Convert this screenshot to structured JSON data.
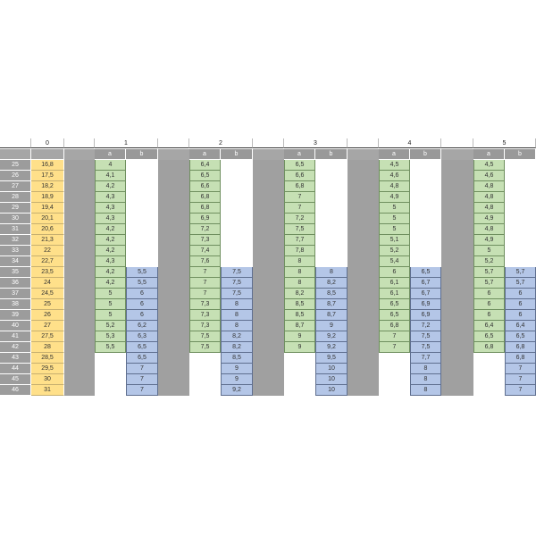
{
  "columns": {
    "c0": "0",
    "groups": [
      "1",
      "2",
      "3",
      "4",
      "5"
    ],
    "sub_a": "a",
    "sub_b": "b"
  },
  "rows": [
    {
      "n": "25",
      "c0": "16,8",
      "v": [
        [
          "4",
          ""
        ],
        [
          "6,4",
          ""
        ],
        [
          "6,5",
          ""
        ],
        [
          "4,5",
          ""
        ],
        [
          "4,5",
          ""
        ]
      ]
    },
    {
      "n": "26",
      "c0": "17,5",
      "v": [
        [
          "4,1",
          ""
        ],
        [
          "6,5",
          ""
        ],
        [
          "6,6",
          ""
        ],
        [
          "4,6",
          ""
        ],
        [
          "4,6",
          ""
        ]
      ]
    },
    {
      "n": "27",
      "c0": "18,2",
      "v": [
        [
          "4,2",
          ""
        ],
        [
          "6,6",
          ""
        ],
        [
          "6,8",
          ""
        ],
        [
          "4,8",
          ""
        ],
        [
          "4,8",
          ""
        ]
      ]
    },
    {
      "n": "28",
      "c0": "18,9",
      "v": [
        [
          "4,3",
          ""
        ],
        [
          "6,8",
          ""
        ],
        [
          "7",
          ""
        ],
        [
          "4,9",
          ""
        ],
        [
          "4,8",
          ""
        ]
      ]
    },
    {
      "n": "29",
      "c0": "19,4",
      "v": [
        [
          "4,3",
          ""
        ],
        [
          "6,8",
          ""
        ],
        [
          "7",
          ""
        ],
        [
          "5",
          ""
        ],
        [
          "4,8",
          ""
        ]
      ]
    },
    {
      "n": "30",
      "c0": "20,1",
      "v": [
        [
          "4,3",
          ""
        ],
        [
          "6,9",
          ""
        ],
        [
          "7,2",
          ""
        ],
        [
          "5",
          ""
        ],
        [
          "4,9",
          ""
        ]
      ]
    },
    {
      "n": "31",
      "c0": "20,6",
      "v": [
        [
          "4,2",
          ""
        ],
        [
          "7,2",
          ""
        ],
        [
          "7,5",
          ""
        ],
        [
          "5",
          ""
        ],
        [
          "4,8",
          ""
        ]
      ]
    },
    {
      "n": "32",
      "c0": "21,3",
      "v": [
        [
          "4,2",
          ""
        ],
        [
          "7,3",
          ""
        ],
        [
          "7,7",
          ""
        ],
        [
          "5,1",
          ""
        ],
        [
          "4,9",
          ""
        ]
      ]
    },
    {
      "n": "33",
      "c0": "22",
      "v": [
        [
          "4,2",
          ""
        ],
        [
          "7,4",
          ""
        ],
        [
          "7,8",
          ""
        ],
        [
          "5,2",
          ""
        ],
        [
          "5",
          ""
        ]
      ]
    },
    {
      "n": "34",
      "c0": "22,7",
      "v": [
        [
          "4,3",
          ""
        ],
        [
          "7,6",
          ""
        ],
        [
          "8",
          ""
        ],
        [
          "5,4",
          ""
        ],
        [
          "5,2",
          ""
        ]
      ]
    },
    {
      "n": "35",
      "c0": "23,5",
      "v": [
        [
          "4,2",
          "5,5"
        ],
        [
          "7",
          "7,5"
        ],
        [
          "8",
          "8"
        ],
        [
          "6",
          "6,5"
        ],
        [
          "5,7",
          "5,7"
        ]
      ]
    },
    {
      "n": "36",
      "c0": "24",
      "v": [
        [
          "4,2",
          "5,5"
        ],
        [
          "7",
          "7,5"
        ],
        [
          "8",
          "8,2"
        ],
        [
          "6,1",
          "6,7"
        ],
        [
          "5,7",
          "5,7"
        ]
      ]
    },
    {
      "n": "37",
      "c0": "24,5",
      "v": [
        [
          "5",
          "6"
        ],
        [
          "7",
          "7,5"
        ],
        [
          "8,2",
          "8,5"
        ],
        [
          "6,1",
          "6,7"
        ],
        [
          "6",
          "6"
        ]
      ]
    },
    {
      "n": "38",
      "c0": "25",
      "v": [
        [
          "5",
          "6"
        ],
        [
          "7,3",
          "8"
        ],
        [
          "8,5",
          "8,7"
        ],
        [
          "6,5",
          "6,9"
        ],
        [
          "6",
          "6"
        ]
      ]
    },
    {
      "n": "39",
      "c0": "26",
      "v": [
        [
          "5",
          "6"
        ],
        [
          "7,3",
          "8"
        ],
        [
          "8,5",
          "8,7"
        ],
        [
          "6,5",
          "6,9"
        ],
        [
          "6",
          "6"
        ]
      ]
    },
    {
      "n": "40",
      "c0": "27",
      "v": [
        [
          "5,2",
          "6,2"
        ],
        [
          "7,3",
          "8"
        ],
        [
          "8,7",
          "9"
        ],
        [
          "6,8",
          "7,2"
        ],
        [
          "6,4",
          "6,4"
        ]
      ]
    },
    {
      "n": "41",
      "c0": "27,5",
      "v": [
        [
          "5,3",
          "6,3"
        ],
        [
          "7,5",
          "8,2"
        ],
        [
          "9",
          "9,2"
        ],
        [
          "7",
          "7,5"
        ],
        [
          "6,5",
          "6,5"
        ]
      ]
    },
    {
      "n": "42",
      "c0": "28",
      "v": [
        [
          "5,5",
          "6,5"
        ],
        [
          "7,5",
          "8,2"
        ],
        [
          "9",
          "9,2"
        ],
        [
          "7",
          "7,5"
        ],
        [
          "6,8",
          "6,8"
        ]
      ]
    },
    {
      "n": "43",
      "c0": "28,5",
      "v": [
        [
          "",
          "6,5"
        ],
        [
          "",
          "8,5"
        ],
        [
          "",
          "9,5"
        ],
        [
          "",
          "7,7"
        ],
        [
          "",
          "6,8"
        ]
      ]
    },
    {
      "n": "44",
      "c0": "29,5",
      "v": [
        [
          "",
          "7"
        ],
        [
          "",
          "9"
        ],
        [
          "",
          "10"
        ],
        [
          "",
          "8"
        ],
        [
          "",
          "7"
        ]
      ]
    },
    {
      "n": "45",
      "c0": "30",
      "v": [
        [
          "",
          "7"
        ],
        [
          "",
          "9"
        ],
        [
          "",
          "10"
        ],
        [
          "",
          "8"
        ],
        [
          "",
          "7"
        ]
      ]
    },
    {
      "n": "46",
      "c0": "31",
      "v": [
        [
          "",
          "7"
        ],
        [
          "",
          "9,2"
        ],
        [
          "",
          "10"
        ],
        [
          "",
          "8"
        ],
        [
          "",
          "7"
        ]
      ]
    }
  ]
}
